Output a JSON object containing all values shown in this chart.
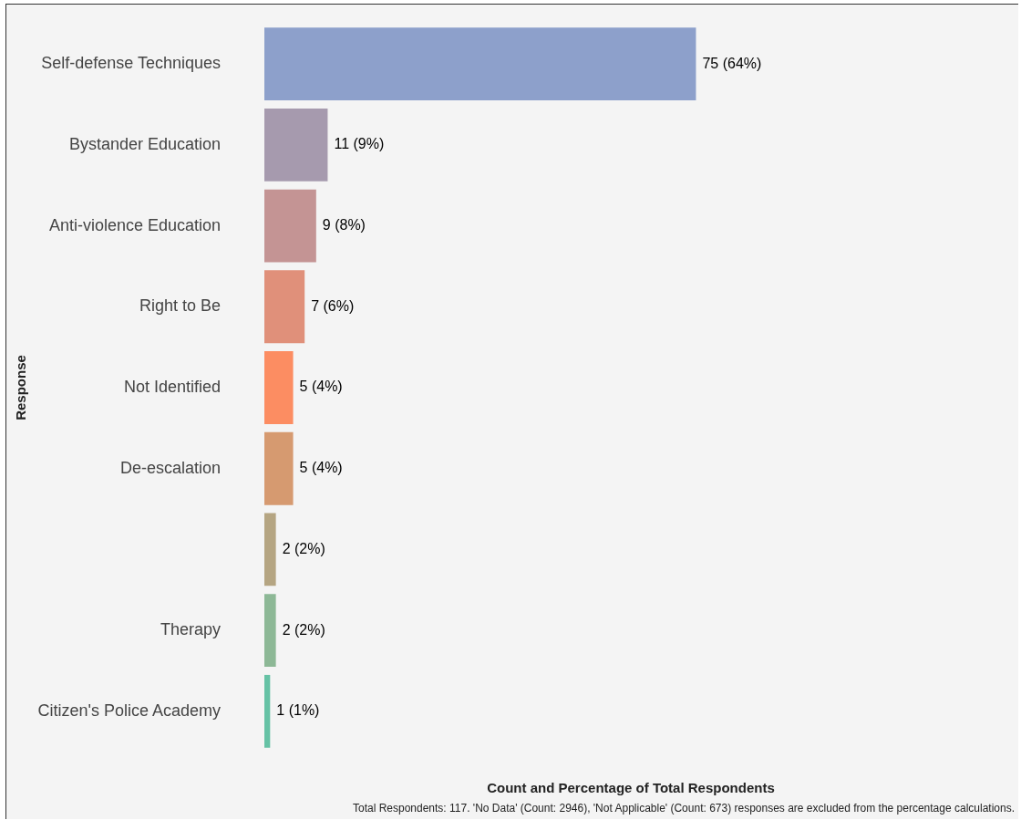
{
  "chart_data": {
    "type": "bar",
    "orientation": "horizontal",
    "xlabel": "Count and Percentage of Total Respondents",
    "ylabel": "Response",
    "categories": [
      "Self-defense Techniques",
      "Bystander Education",
      "Anti-violence Education",
      "Right to Be",
      "Not Identified",
      "De-escalation",
      null,
      "Therapy",
      "Citizen's Police Academy"
    ],
    "values": [
      75,
      11,
      9,
      7,
      5,
      5,
      2,
      2,
      1
    ],
    "colors": [
      "#8da0cb",
      "#a69aae",
      "#c49494",
      "#e0907a",
      "#fc8d62",
      "#d69a70",
      "#b5a582",
      "#8db896",
      "#66c2a5"
    ],
    "value_labels": [
      "75 (64%)",
      "11 (9%)",
      "9 (8%)",
      "7 (6%)",
      "5 (4%)",
      "5 (4%)",
      "2 (2%)",
      "2 (2%)",
      "1 (1%)"
    ],
    "tick_labels": "y",
    "annotations": [
      "Total Respondents: 117. 'No Data' (Count: 2946), 'Not Applicable' (Count: 673) responses are excluded from the percentage calculations."
    ]
  }
}
